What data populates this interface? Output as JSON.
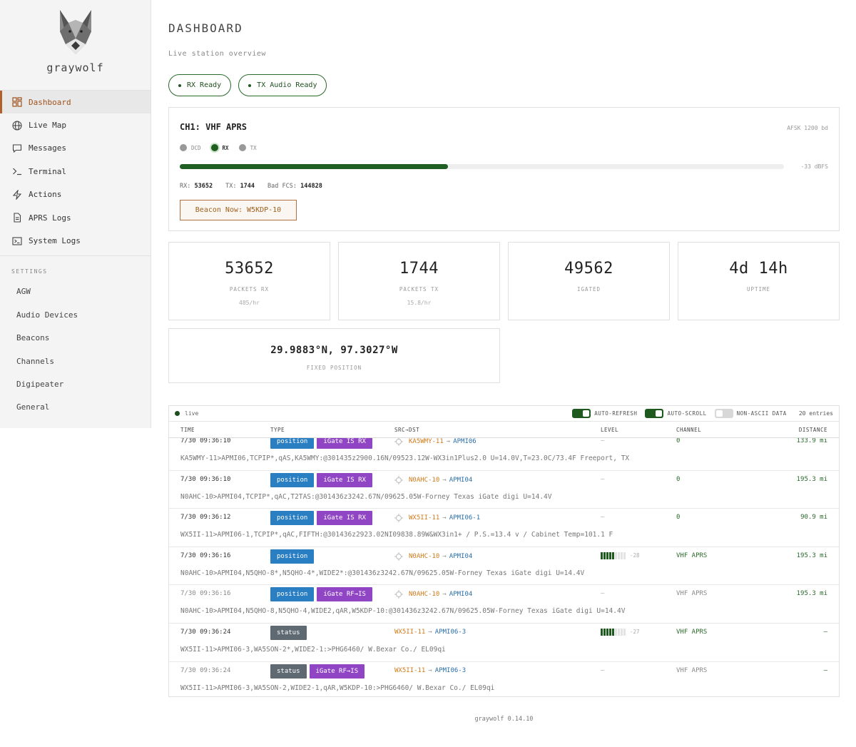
{
  "app": {
    "brand": "graywolf",
    "version": "graywolf 0.14.10"
  },
  "nav": [
    {
      "label": "Dashboard",
      "icon": "dashboard-icon",
      "active": true
    },
    {
      "label": "Live Map",
      "icon": "globe-icon"
    },
    {
      "label": "Messages",
      "icon": "message-icon"
    },
    {
      "label": "Terminal",
      "icon": "terminal-icon"
    },
    {
      "label": "Actions",
      "icon": "bolt-icon"
    },
    {
      "label": "APRS Logs",
      "icon": "document-icon"
    },
    {
      "label": "System Logs",
      "icon": "console-icon"
    }
  ],
  "settings": {
    "heading": "SETTINGS",
    "items": [
      "AGW",
      "Audio Devices",
      "Beacons",
      "Channels",
      "Digipeater",
      "General"
    ]
  },
  "page": {
    "title": "DASHBOARD",
    "subtitle": "Live station overview"
  },
  "pills": [
    {
      "label": "RX Ready"
    },
    {
      "label": "TX Audio Ready"
    }
  ],
  "channel": {
    "title": "CH1: VHF APRS",
    "mode": "AFSK 1200 bd",
    "leds": [
      {
        "label": "DCD",
        "on": false
      },
      {
        "label": "RX",
        "on": true
      },
      {
        "label": "TX",
        "on": false
      }
    ],
    "level_fraction": 0.444,
    "level_text": "-33 dBFS",
    "rx_label": "RX:",
    "rx": "53652",
    "tx_label": "TX:",
    "tx": "1744",
    "fcs_label": "Bad FCS:",
    "fcs": "144828",
    "beacon_button": "Beacon Now: W5KDP-10"
  },
  "stats": [
    {
      "value": "53652",
      "label": "PACKETS RX",
      "rate": "485/hr"
    },
    {
      "value": "1744",
      "label": "PACKETS TX",
      "rate": "15.8/hr"
    },
    {
      "value": "49562",
      "label": "IGATED",
      "rate": ""
    },
    {
      "value": "4d 14h",
      "label": "UPTIME",
      "rate": ""
    }
  ],
  "position": {
    "value": "29.9883°N, 97.3027°W",
    "label": "FIXED POSITION"
  },
  "log": {
    "live_label": "live",
    "toggles": [
      {
        "label": "AUTO-REFRESH",
        "on": true
      },
      {
        "label": "AUTO-SCROLL",
        "on": true
      },
      {
        "label": "NON-ASCII DATA",
        "on": false
      }
    ],
    "entries": "20 entries",
    "columns": {
      "time": "TIME",
      "type": "TYPE",
      "src_dst": "SRC→DST",
      "level": "LEVEL",
      "channel": "CHANNEL",
      "distance": "DISTANCE"
    },
    "rows": [
      {
        "time": "7/30 09:36:10",
        "tags": [
          "position",
          "iGate IS RX"
        ],
        "src": "KA5WMY-11",
        "dst": "APMI06",
        "pos_icon": true,
        "level": "—",
        "bars": 0,
        "db": "",
        "channel": "0",
        "distance": "133.9 mi",
        "dim": false,
        "raw": "KA5WMY-11>APMI06,TCPIP*,qAS,KA5WMY:@301435z2900.16N/09523.12W-WX3in1Plus2.0 U=14.0V,T=23.0C/73.4F Freeport, TX"
      },
      {
        "time": "7/30 09:36:10",
        "tags": [
          "position",
          "iGate IS RX"
        ],
        "src": "N0AHC-10",
        "dst": "APMI04",
        "pos_icon": true,
        "level": "—",
        "bars": 0,
        "db": "",
        "channel": "0",
        "distance": "195.3 mi",
        "dim": false,
        "raw": "N0AHC-10>APMI04,TCPIP*,qAC,T2TAS:@301436z3242.67N/09625.05W-Forney Texas iGate digi U=14.4V"
      },
      {
        "time": "7/30 09:36:12",
        "tags": [
          "position",
          "iGate IS RX"
        ],
        "src": "WX5II-11",
        "dst": "APMI06-1",
        "pos_icon": true,
        "level": "—",
        "bars": 0,
        "db": "",
        "channel": "0",
        "distance": "90.9 mi",
        "dim": false,
        "raw": "WX5II-11>APMI06-1,TCPIP*,qAC,FIFTH:@301436z2923.02NI09838.89W&WX3in1+ / P.S.=13.4 v / Cabinet Temp=101.1 F"
      },
      {
        "time": "7/30 09:36:16",
        "tags": [
          "position"
        ],
        "src": "N0AHC-10",
        "dst": "APMI04",
        "pos_icon": true,
        "level": "",
        "bars": 5,
        "db": "-28",
        "channel": "VHF APRS",
        "distance": "195.3 mi",
        "dim": false,
        "raw": "N0AHC-10>APMI04,N5QHO-8*,N5QHO-4*,WIDE2*:@301436z3242.67N/09625.05W-Forney Texas iGate digi U=14.4V"
      },
      {
        "time": "7/30 09:36:16",
        "tags": [
          "position",
          "iGate RF→IS"
        ],
        "src": "N0AHC-10",
        "dst": "APMI04",
        "pos_icon": true,
        "level": "—",
        "bars": 0,
        "db": "",
        "channel": "VHF APRS",
        "distance": "195.3 mi",
        "dim": true,
        "raw": "N0AHC-10>APMI04,N5QHO-8,N5QHO-4,WIDE2,qAR,W5KDP-10:@301436z3242.67N/09625.05W-Forney Texas iGate digi U=14.4V"
      },
      {
        "time": "7/30 09:36:24",
        "tags": [
          "status"
        ],
        "src": "WX5II-11",
        "dst": "APMI06-3",
        "pos_icon": false,
        "level": "",
        "bars": 5,
        "db": "-27",
        "channel": "VHF APRS",
        "distance": "—",
        "dim": false,
        "raw": "WX5II-11>APMI06-3,WA5SON-2*,WIDE2-1:>PHG6460/ W.Bexar Co./ EL09qi"
      },
      {
        "time": "7/30 09:36:24",
        "tags": [
          "status",
          "iGate RF→IS"
        ],
        "src": "WX5II-11",
        "dst": "APMI06-3",
        "pos_icon": false,
        "level": "—",
        "bars": 0,
        "db": "",
        "channel": "VHF APRS",
        "distance": "—",
        "dim": true,
        "raw": "WX5II-11>APMI06-3,WA5SON-2,WIDE2-1,qAR,W5KDP-10:>PHG6460/ W.Bexar Co./ EL09qi"
      }
    ]
  },
  "colors": {
    "accent": "#b0602a",
    "ok": "#1e5a1e",
    "position_tag": "#2a7ec2",
    "igate_tag": "#9046c4",
    "status_tag": "#5f6972"
  }
}
